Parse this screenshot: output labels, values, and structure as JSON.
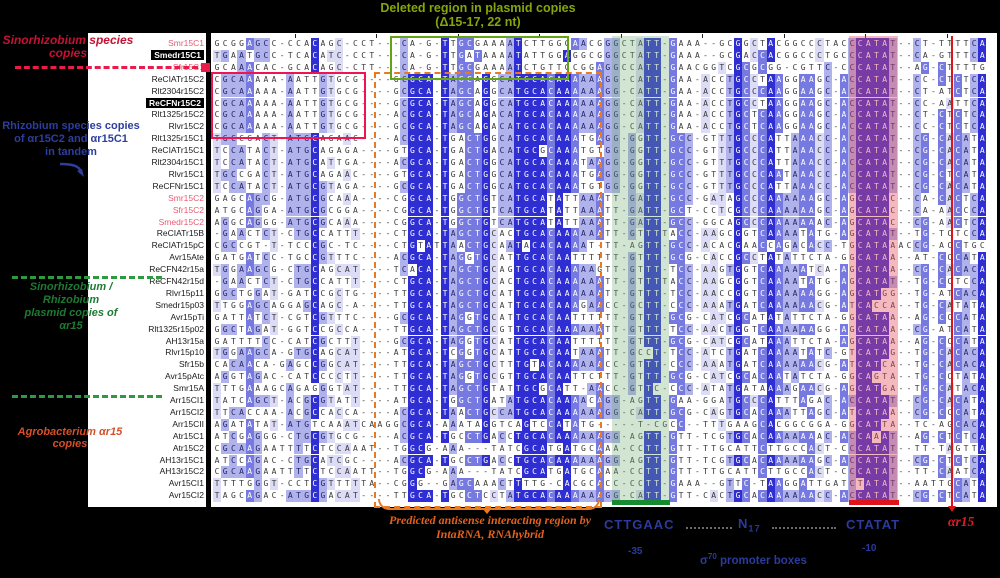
{
  "annotations": {
    "top_green": {
      "line1": "Deleted region in plasmid copies",
      "line2": "(Δ15-17, 22 nt)"
    },
    "left_red": {
      "line1": "Sinorhizobium species",
      "line2": "copies"
    },
    "left_blue": {
      "line1": "Rhizobium species copies",
      "line2": "of αr15C2 and αr15C1",
      "line3": "in tandem"
    },
    "left_green": {
      "line1": "Sinorhizobium / Rhizobium",
      "line2": "plasmid copies of",
      "line3": "αr15"
    },
    "left_orange": {
      "line1": "Agrobacterium αr15 copies"
    },
    "bottom_orange": {
      "line1": "Predicted antisense interacting region by",
      "line2": "IntaRNA, RNAhybrid"
    },
    "promoter": {
      "minus35_seq": "CTTGAAC",
      "spacer_base": "N",
      "spacer_sub": "17",
      "minus10_seq": "CTATAT",
      "minus35_label": "-35",
      "minus10_label": "-10",
      "sigma": "σ",
      "sigma_sup": "70",
      "sigma_rest": " promoter boxes",
      "srna_label": "αr15"
    }
  },
  "colors": {
    "tier_dark": "#2e2ed2",
    "tier_mid": "#7679e0",
    "tier_light": "#b0b2ec",
    "tier_pale": "#dcdcf7",
    "crimson_box": "#ee1550",
    "green_box": "#63a414",
    "orange_box": "#e87b22",
    "green_shade": "rgba(115,175,115,.32)",
    "pink_shade": "rgba(228,80,95,.40)",
    "tss_red": "#e01318"
  },
  "alignment": {
    "regions": {
      "crimson_box": {
        "c0": 0,
        "c1": 17,
        "r0": 3,
        "r1": 7
      },
      "green_box": {
        "c0": 22,
        "c1": 42,
        "r0": 0,
        "r1": 2
      },
      "orange_box": {
        "c0": 20,
        "c1": 46,
        "r0": 3,
        "r1": 38
      },
      "green_cols": {
        "c0": 49,
        "c1": 55
      },
      "pink_cols": {
        "c0": 78,
        "c1": 83
      },
      "tss_col": 90.6,
      "tick_every": 10
    },
    "rows": [
      {
        "label": "Smr15C1",
        "style": "red",
        "seq": "GCGGAGCC-CCACAGC-CCT---CA-G-TTGCGAAAATCTTGGGAACGGGCTATT-GAAA--GCGGCTACGGCCCTACCCATAT--CT-TTTTCA"
      },
      {
        "label": "Smedr15C1",
        "style": "hl",
        "seq": "TGAATGCC-TCACATC-CCT---CA-G-TTGATAAAATATTGGAGGCGGGCTATT-GAAA--GCGACCACGGCCCTGCCCATAT--CA-GTTTCA"
      },
      {
        "label": "Sfr15C1",
        "style": "red",
        "seq": "GCAAACAC-GCACAGC-CTT---CA-G-TTGCGAAAATCTGTTGCGGAGGCCATT-GAACGGTCGCGCGG-CGTTC-CCCATAT--AG-CTTTTG"
      },
      {
        "label": "ReCIATr15C2",
        "style": "plain",
        "seq": "CGCAAAAA-AATTGTGCG----GCGCA-TAGCAGGCATGCACAAAAAAGG-CATT-GAA-ACCTGCCTAAGGAAGC-ACCATAT--CC-CTCTCA"
      },
      {
        "label": "Rlt2304r15C2",
        "style": "plain",
        "seq": "CGCAAAAA-AATTGTGCG----GCGCA-TAGCAGGCATGCACAAAAAAGG-CATT-GAA-ACCTGCCCAAGGAAGC-ACCATAT--CT-ATCTCA"
      },
      {
        "label": "ReCFNr15C2",
        "style": "hl",
        "seq": "CGCAAAAA-AATTGTGCG----GCGCA-TAGCAGGCATGCACAAAAAAGG-CATT-GAA-ACCTGCCTAAGGAAGC-ACCATAT--CC-AATTCA"
      },
      {
        "label": "Rlt1325r15C2",
        "style": "plain",
        "seq": "CGCAAAAA-AATTGTGCG----ACGCA-TAGCAGACATGCACAAAAAAGG-CATT-GAA-ACCTGCTCAAGGAAGC-ACCATAT--CT-CTCTCA"
      },
      {
        "label": "Rlvr15C2",
        "style": "plain",
        "seq": "CGCAAAAA-AATTGTGCG----GCGCA-TAGCAGACATGCACAAAAAAGG-CATT-GAA-ACCTGCTCAAGGAAGC-ACCATAT--CC-CTCTCA"
      },
      {
        "label": "Rlt1325r15C1",
        "style": "plain",
        "seq": "TGCCGACT-ATGCAGAAC----ACGCA-TGACTGGCATGCACAAATGAGG-GGTT-GCC-GTTTGCCCATTAAACC-ACCATAT--CG-CACATA"
      },
      {
        "label": "ReCIATr15C1",
        "style": "plain",
        "seq": "TCCATACT-ATGCAGAGA----GTGCA-TGACTGACATGCGCAAATGTGG-GGTT-GCC-GTTTGCCCATTAAACC-ACCATAT--CG-CACATA"
      },
      {
        "label": "Rlt2304r15C1",
        "style": "plain",
        "seq": "TCCATACT-ATGCATTGA----ACGCA-TGACTGGCATGCACAAATAAGG-GGTT-GCC-GTTTGCCCATTAAACC-ACCATAT--CG-CACATA"
      },
      {
        "label": "Rlvr15C1",
        "style": "plain",
        "seq": "TGCCGACT-ATGCAGAAC----GTGCA-TGACTGGCATGCACAAATGAGG-GGTT-GCC-GTTTGCCCAATAAACC-ACCATAT--CG-CTCATA"
      },
      {
        "label": "ReCFNr15C1",
        "style": "plain",
        "seq": "TCCATACT-ATGCGTAGA----GCGCA-TGACTGGCATGCACAAATGTGG-GGTT-GCC-GTTTGCCCATTAAACC-ACCATAT--CG-CACATA"
      },
      {
        "label": "Smr15C2",
        "style": "red",
        "seq": "GAGCAGCG-ATGCGCAAA----CGGCA-TGGCTGTCATGCATATTAAATT-GATT-GCC-GATAGCCCAAAAAAGC-AGCATAC--CA-CACTCA"
      },
      {
        "label": "Sfr15C2",
        "style": "red",
        "seq": "ATGCAGGA-ATGCGCGGA----CGGCA-TGGCTGTCATGCATATTAAATT-GATT-GCT-CCTCGCCCAAAAAAGC-AGCATAC--CA-AACCCA"
      },
      {
        "label": "Smedr15C2",
        "style": "red",
        "seq": "AGGCAGGG-ATGCGCAAA----CGGCA-TGGCTGTCATGCATATTAAATT-GATT-GCC-GGCAGCCCAAAAAAAC-AGCATAC--CG-AACTCA"
      },
      {
        "label": "ReCIATr15B",
        "style": "plain",
        "seq": "-GAACTCT-CTGCCATTT----CTGCA-TAGCTGCACTGCACAAAAAATT-GTTTTACC-AAGCGGTCAAAATATG-AGCATAT--TG-TCTCCA"
      },
      {
        "label": "ReCIATr15pC",
        "style": "plain",
        "seq": "CGCCGT-T-TCCCGC-TC----CTGTATTAACTGCAATACACAAAAT-TT-AGTT-GCC-ACACGAACCAGACACC-TGCATAAACCG-ACCTGC"
      },
      {
        "label": "Avr15Ate",
        "style": "plain",
        "seq": "GATGATCC-TGCCGTTTC----ACGCA-TAGGTGCATTGCACAATTTTTT-GTTT-GCG-CACCGCCTATATTCTA-GGCATAA--AT-CCCATA"
      },
      {
        "label": "ReCFN42r15a",
        "style": "plain",
        "seq": "TGGAAGCG-CTGCAGCAT----TCACA-TAGCTGCAGTGCACAAAAAGTT-GTTT-TCC-AAGTGGTCAAAAATCA-AGCATAA--CG-CACACA"
      },
      {
        "label": "ReCFN42r15d",
        "style": "plain",
        "seq": "-GAACTCT-CTGCCATTT----CTGCA-TAGCTGCACTGCACAAAAAATT-GTTTTACC-AAGCGGTCAAAATATG-AGCATAT--TG-CCTCCA"
      },
      {
        "label": "Rlvr15p11",
        "style": "plain",
        "seq": "GGCTGGAT-GATCCGCTG----TTGCA-TAGCTGCATTGCACAAAAAATT-GTTT-TCC-AACCGGTCAAAAAAGG-AGCATGG--TG-ATCACA"
      },
      {
        "label": "Smedr15p03",
        "style": "plain",
        "seq": "TTGGAGCAGGAGCAGC-A----TTGCA-TAGCTGCATTGCACAAAGAACC-GCTT-CCC-AAATGATCAAAAAACG-ATCACCA--TG-CATATA"
      },
      {
        "label": "Avr15pTi",
        "style": "plain",
        "seq": "GATTATCT-CGTCGTTTC----GCGCA-TAGGTGCATTGCACAATTTTTT-GTTT-GCG-CATCGCATATATTCTA-GGCATAA--AG-CCCATA"
      },
      {
        "label": "Rlt1325r15p02",
        "style": "plain",
        "seq": "GGCTAGAT-GGTCCGCCA----TTGCA-TAGCTGCGTTGCACAAAAAATT-GTTT-TCC-AACTGGTCAAAAAAGG-AGCATAA--CG-ATCATA"
      },
      {
        "label": "AH13r15a",
        "style": "plain",
        "seq": "GATTTTCC-CATCGCTTT----GCGCA-TAGGTGCATTGCACAATTTTTT-GTTT-GCG-CATCGCATAAATTCTA-AGCATAA--AG-CCCATA"
      },
      {
        "label": "Rlvr15p10",
        "style": "plain",
        "seq": "TGGAAGCA-GTGCAGCAT----ATGCA-TCGGTGCATTGCACAATAAATT-GCCT-TCC-ATCTGATCAAAATATC-GTCATAG--TG-CACACA"
      },
      {
        "label": "Sfr15b",
        "style": "plain",
        "seq": "CACAACA-GAGCCGGCAT----TTGCA-TAGCTGCTTTGTACAAAAAACC-GTTT-CCC-AAATGATCAAAAAACG-ATCATCA--TG-CACACA"
      },
      {
        "label": "Avr15pAtc",
        "style": "plain",
        "seq": "AGGTAGAC-CATCCCCTT----TTGCA-TAGGTGCGTTGCACAATTCTTT-GTTT-GCG-CATCGCACAATATCTA-GGCAGTA--TG-CCTATA"
      },
      {
        "label": "Smr15A",
        "style": "plain",
        "seq": "TTTGAAAGCAGAGGGTAT----TTGCA-TAGCTGTATTGCGCATT-AACC-GTTC-CCC-ATATGATAAAAGAACG-AGCATGA--TG-CATACA"
      },
      {
        "label": "Arr15CI1",
        "style": "plain",
        "seq": "TATCAGCT-ACGCGTATT----ATGCA-TGGCTGATATGCACAAAACAGG-AGTT-GAA-GGATGCCCATTTAGAC-ACCATAT--CG-CACATA"
      },
      {
        "label": "Arr15CI2",
        "style": "plain",
        "seq": "TTCACCAA-ACGCCACCA----ACGCA-TAACTGCCATGCACAAAAAAGG-CATT-GCG-CAGTGCACAAATTAGC-ATCATAA--CG-CCCATA"
      },
      {
        "label": "Arr15CII",
        "style": "plain",
        "seq": "AGATATAT-ATGTCAAATCAAGGCGCA-AAATAGGTCAGTCCATATG-----T-CGCC--TTTGAAGCACGGCGGA-GGCATTA--TC-AGCACA"
      },
      {
        "label": "Atr15C1",
        "style": "plain",
        "seq": "ATCGAGGG-CTGCGTGCG----ACGCA-TGCCTGACCTGCACAAAAAAGG-AGTT-GTT-TCGTGCACAAAAAAAC-ACCAAAT--AG-CTCTCA"
      },
      {
        "label": "Atr15C2",
        "style": "plain",
        "seq": "CGCAAGAATTTTCTCCAAAT--TGGCG-AAA---TATCGCATGATGCAAA-CCTT-GTT-TTGCATTCTTGCCACT-CCCATAT--TT-TAGTTA"
      },
      {
        "label": "AH13r15C1",
        "style": "plain",
        "seq": "ATCCAGAC-CTGCATCGC----ACGCA-TGCCTGACCTGCACAAAAAAGG-AGTT-GTT-TCGTGCACAAAAAAGC-ACCATAT--CG-CTCTCA"
      },
      {
        "label": "AH13r15C2",
        "style": "plain",
        "seq": "CGCAAGAATTTTCTCCAATT--TGGCG-AAA---TATCGCATGATGCAAA-CCTT-GTT-TTGCATTCTTGCCACT-CCCATAT--TT-CAATCA"
      },
      {
        "label": "Avr15CI1",
        "style": "plain",
        "seq": "TTTTGGGT-CCTCGTTTTTA--CGGG--GAGCAAACTTTTG-CACGCACC-CCTT-GAAA--GTTC-TAAGGATTGATCTATAT--AATTGCATA"
      },
      {
        "label": "Avr15CI2",
        "style": "plain",
        "seq": "TAGCAGAC-ATGCGACAT----TTGCA-TGCCTCCTATGCACAAAAAAGG-CATT-GTT-CACTGCACAAAAAACC-ACCATAT--CG-CTCATA"
      }
    ]
  }
}
